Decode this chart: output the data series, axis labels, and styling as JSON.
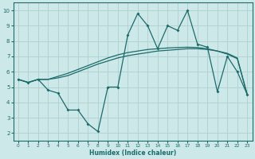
{
  "xlabel": "Humidex (Indice chaleur)",
  "bg_color": "#cde8e8",
  "line_color": "#1c6b6b",
  "grid_color": "#aed0d0",
  "xlim": [
    -0.5,
    23.5
  ],
  "ylim": [
    1.5,
    10.5
  ],
  "xticks": [
    0,
    1,
    2,
    3,
    4,
    5,
    6,
    7,
    8,
    9,
    10,
    11,
    12,
    13,
    14,
    15,
    16,
    17,
    18,
    19,
    20,
    21,
    22,
    23
  ],
  "yticks": [
    2,
    3,
    4,
    5,
    6,
    7,
    8,
    9,
    10
  ],
  "line_smooth1_x": [
    0,
    1,
    2,
    3,
    4,
    5,
    6,
    7,
    8,
    9,
    10,
    11,
    12,
    13,
    14,
    15,
    16,
    17,
    18,
    19,
    20,
    21,
    22,
    23
  ],
  "line_smooth1_y": [
    5.5,
    5.3,
    5.5,
    5.5,
    5.6,
    5.75,
    6.0,
    6.25,
    6.5,
    6.7,
    6.9,
    7.05,
    7.15,
    7.25,
    7.35,
    7.4,
    7.45,
    7.5,
    7.5,
    7.45,
    7.35,
    7.2,
    6.9,
    4.5
  ],
  "line_smooth2_x": [
    0,
    1,
    2,
    3,
    4,
    5,
    6,
    7,
    8,
    9,
    10,
    11,
    12,
    13,
    14,
    15,
    16,
    17,
    18,
    19,
    20,
    21,
    22,
    23
  ],
  "line_smooth2_y": [
    5.5,
    5.3,
    5.5,
    5.5,
    5.7,
    5.9,
    6.15,
    6.4,
    6.65,
    6.9,
    7.1,
    7.25,
    7.35,
    7.45,
    7.5,
    7.55,
    7.58,
    7.6,
    7.58,
    7.5,
    7.35,
    7.15,
    6.85,
    4.5
  ],
  "line_jagged_x": [
    0,
    1,
    2,
    3,
    4,
    5,
    6,
    7,
    8,
    9,
    10,
    11,
    12,
    13,
    14,
    15,
    16,
    17,
    18,
    19,
    20,
    21,
    22,
    23
  ],
  "line_jagged_y": [
    5.5,
    5.3,
    5.5,
    4.8,
    4.6,
    3.5,
    3.5,
    2.6,
    2.1,
    5.0,
    5.0,
    8.4,
    9.8,
    9.0,
    7.5,
    9.0,
    8.7,
    10.0,
    7.8,
    7.6,
    4.7,
    7.0,
    6.0,
    4.5
  ]
}
